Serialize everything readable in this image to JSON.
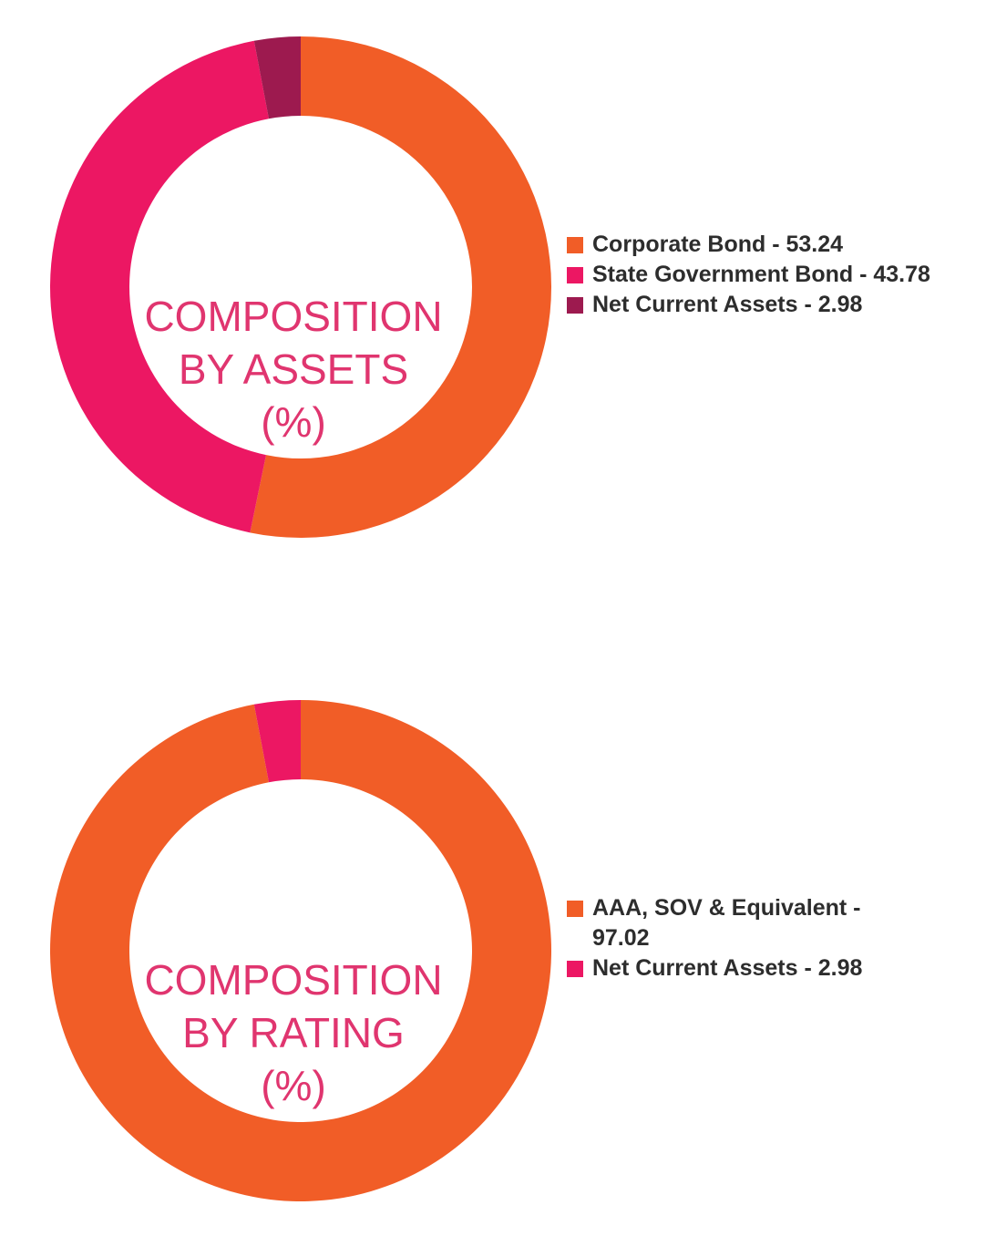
{
  "chart_data": [
    {
      "type": "pie",
      "donut": true,
      "center_label": [
        "COMPOSITION",
        "BY ASSETS",
        "(%)"
      ],
      "categories": [
        "Corporate Bond",
        "State Government Bond",
        "Net Current Assets"
      ],
      "values": [
        53.24,
        43.78,
        2.98
      ],
      "colors": [
        "#f15d27",
        "#ec1763",
        "#9d1a4f"
      ],
      "legend_labels": [
        "Corporate Bond - 53.24",
        "State Government Bond - 43.78",
        "Net Current Assets - 2.98"
      ],
      "legend_position": "right"
    },
    {
      "type": "pie",
      "donut": true,
      "center_label": [
        "COMPOSITION",
        "BY RATING",
        "(%)"
      ],
      "categories": [
        "AAA, SOV & Equivalent",
        "Net Current Assets"
      ],
      "values": [
        97.02,
        2.98
      ],
      "colors": [
        "#f15d27",
        "#ec1763"
      ],
      "legend_labels": [
        "AAA, SOV & Equivalent - 97.02",
        "Net Current Assets - 2.98"
      ],
      "legend_position": "right"
    }
  ]
}
